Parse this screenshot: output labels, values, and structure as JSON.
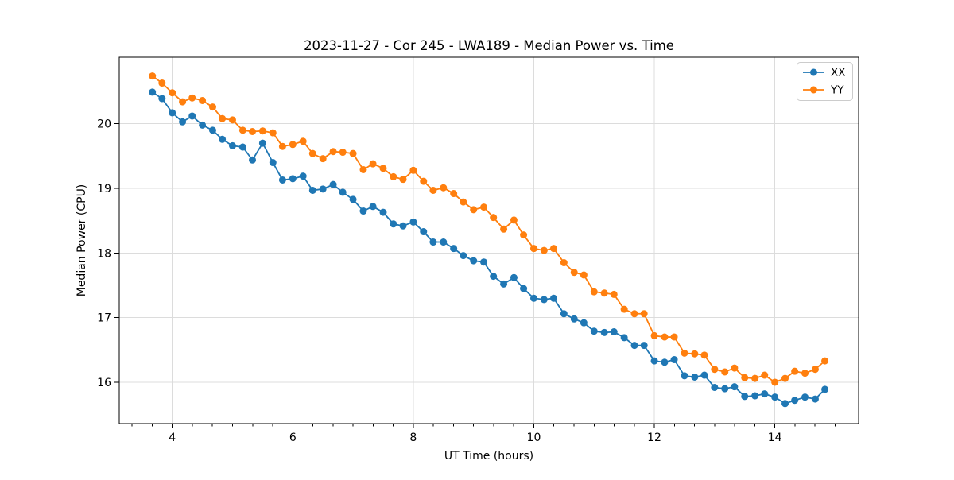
{
  "chart_data": {
    "type": "line",
    "title": "2023-11-27 - Cor 245 - LWA189 - Median Power vs. Time",
    "xlabel": "UT Time (hours)",
    "ylabel": "Median Power (CPU)",
    "xlim": [
      3.12,
      15.39
    ],
    "ylim": [
      15.36,
      21.03
    ],
    "xticks": [
      4,
      6,
      8,
      10,
      12,
      14
    ],
    "yticks": [
      16,
      17,
      18,
      19,
      20
    ],
    "x_minor_step": 0.3333,
    "grid": true,
    "grid_color": "#dcdcdc",
    "background_color": "#ffffff",
    "axis_color": "#000000",
    "legend_position": "upper right",
    "x": [
      3.67,
      3.83,
      4.0,
      4.17,
      4.33,
      4.5,
      4.67,
      4.83,
      5.0,
      5.17,
      5.33,
      5.5,
      5.67,
      5.83,
      6.0,
      6.17,
      6.33,
      6.5,
      6.67,
      6.83,
      7.0,
      7.17,
      7.33,
      7.5,
      7.67,
      7.83,
      8.0,
      8.17,
      8.33,
      8.5,
      8.67,
      8.83,
      9.0,
      9.17,
      9.33,
      9.5,
      9.67,
      9.83,
      10.0,
      10.17,
      10.33,
      10.5,
      10.67,
      10.83,
      11.0,
      11.17,
      11.33,
      11.5,
      11.67,
      11.83,
      12.0,
      12.17,
      12.33,
      12.5,
      12.67,
      12.83,
      13.0,
      13.17,
      13.33,
      13.5,
      13.67,
      13.83,
      14.0,
      14.17,
      14.33,
      14.5,
      14.67,
      14.83
    ],
    "series": [
      {
        "name": "XX",
        "color": "#1f77b4",
        "values": [
          20.49,
          20.39,
          20.17,
          20.03,
          20.12,
          19.98,
          19.9,
          19.76,
          19.66,
          19.64,
          19.44,
          19.7,
          19.4,
          19.13,
          19.15,
          19.19,
          18.97,
          18.99,
          19.06,
          18.94,
          18.83,
          18.65,
          18.72,
          18.63,
          18.45,
          18.42,
          18.48,
          18.33,
          18.17,
          18.17,
          18.07,
          17.96,
          17.88,
          17.86,
          17.64,
          17.52,
          17.62,
          17.45,
          17.3,
          17.28,
          17.3,
          17.06,
          16.98,
          16.92,
          16.79,
          16.77,
          16.78,
          16.69,
          16.57,
          16.57,
          16.33,
          16.31,
          16.35,
          16.1,
          16.08,
          16.11,
          15.92,
          15.9,
          15.93,
          15.78,
          15.79,
          15.82,
          15.77,
          15.67,
          15.72,
          15.77,
          15.74,
          15.89
        ]
      },
      {
        "name": "YY",
        "color": "#ff7f0e",
        "values": [
          20.74,
          20.63,
          20.48,
          20.34,
          20.4,
          20.36,
          20.26,
          20.08,
          20.06,
          19.9,
          19.88,
          19.89,
          19.86,
          19.65,
          19.68,
          19.73,
          19.54,
          19.46,
          19.57,
          19.56,
          19.54,
          19.29,
          19.38,
          19.31,
          19.18,
          19.14,
          19.28,
          19.11,
          18.97,
          19.01,
          18.92,
          18.79,
          18.67,
          18.71,
          18.55,
          18.37,
          18.51,
          18.28,
          18.07,
          18.04,
          18.07,
          17.85,
          17.7,
          17.66,
          17.4,
          17.38,
          17.36,
          17.13,
          17.06,
          17.06,
          16.72,
          16.7,
          16.7,
          16.45,
          16.44,
          16.42,
          16.2,
          16.16,
          16.22,
          16.07,
          16.06,
          16.11,
          16.0,
          16.06,
          16.17,
          16.14,
          16.2,
          16.33
        ]
      }
    ]
  }
}
